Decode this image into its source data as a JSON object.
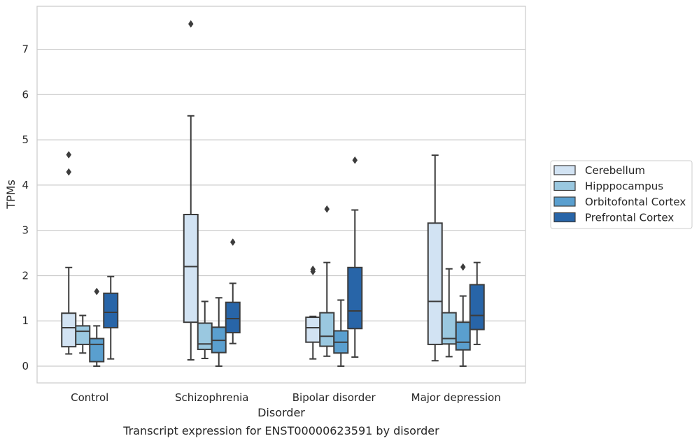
{
  "caption": "Transcript expression for ENST00000623591 by disorder",
  "chart_data": {
    "type": "box",
    "xlabel": "Disorder",
    "ylabel": "TPMs",
    "ylim": [
      -0.37,
      7.95
    ],
    "yticks": [
      0,
      1,
      2,
      3,
      4,
      5,
      6,
      7
    ],
    "categories": [
      "Control",
      "Schizophrenia",
      "Bipolar disorder",
      "Major depression"
    ],
    "grid": "horizontal",
    "legend_position": "right",
    "series": [
      {
        "name": "Cerebellum",
        "color": "#d2e3f3",
        "boxes": [
          {
            "whislo": 0.27,
            "q1": 0.43,
            "med": 0.85,
            "q3": 1.17,
            "whishi": 2.18,
            "fliers": [
              4.67,
              4.29
            ]
          },
          {
            "whislo": 0.14,
            "q1": 0.97,
            "med": 2.2,
            "q3": 3.35,
            "whishi": 5.53,
            "fliers": [
              7.56
            ]
          },
          {
            "whislo": 0.16,
            "q1": 0.53,
            "med": 0.85,
            "q3": 1.08,
            "whishi": 1.1,
            "fliers": [
              2.14,
              2.09
            ]
          },
          {
            "whislo": 0.12,
            "q1": 0.48,
            "med": 1.43,
            "q3": 3.16,
            "whishi": 4.66,
            "fliers": []
          }
        ]
      },
      {
        "name": "Hipppocampus",
        "color": "#9ac8e0",
        "boxes": [
          {
            "whislo": 0.29,
            "q1": 0.48,
            "med": 0.77,
            "q3": 0.89,
            "whishi": 1.12,
            "fliers": []
          },
          {
            "whislo": 0.17,
            "q1": 0.37,
            "med": 0.49,
            "q3": 0.95,
            "whishi": 1.43,
            "fliers": []
          },
          {
            "whislo": 0.22,
            "q1": 0.44,
            "med": 0.66,
            "q3": 1.18,
            "whishi": 2.29,
            "fliers": [
              3.47
            ]
          },
          {
            "whislo": 0.21,
            "q1": 0.49,
            "med": 0.61,
            "q3": 1.18,
            "whishi": 2.15,
            "fliers": []
          }
        ]
      },
      {
        "name": "Orbitofontal Cortex",
        "color": "#5a9fcf",
        "boxes": [
          {
            "whislo": 0.0,
            "q1": 0.1,
            "med": 0.48,
            "q3": 0.61,
            "whishi": 0.89,
            "fliers": [
              1.65
            ]
          },
          {
            "whislo": 0.0,
            "q1": 0.3,
            "med": 0.57,
            "q3": 0.86,
            "whishi": 1.51,
            "fliers": []
          },
          {
            "whislo": 0.0,
            "q1": 0.29,
            "med": 0.53,
            "q3": 0.78,
            "whishi": 1.46,
            "fliers": []
          },
          {
            "whislo": 0.0,
            "q1": 0.36,
            "med": 0.53,
            "q3": 0.97,
            "whishi": 1.55,
            "fliers": [
              2.19
            ]
          }
        ]
      },
      {
        "name": "Prefrontal Cortex",
        "color": "#2865a8",
        "boxes": [
          {
            "whislo": 0.16,
            "q1": 0.85,
            "med": 1.19,
            "q3": 1.61,
            "whishi": 1.98,
            "fliers": []
          },
          {
            "whislo": 0.5,
            "q1": 0.74,
            "med": 1.05,
            "q3": 1.41,
            "whishi": 1.83,
            "fliers": [
              2.74
            ]
          },
          {
            "whislo": 0.2,
            "q1": 0.83,
            "med": 1.22,
            "q3": 2.18,
            "whishi": 3.45,
            "fliers": [
              4.55
            ]
          },
          {
            "whislo": 0.48,
            "q1": 0.81,
            "med": 1.12,
            "q3": 1.8,
            "whishi": 2.29,
            "fliers": []
          }
        ]
      }
    ]
  }
}
